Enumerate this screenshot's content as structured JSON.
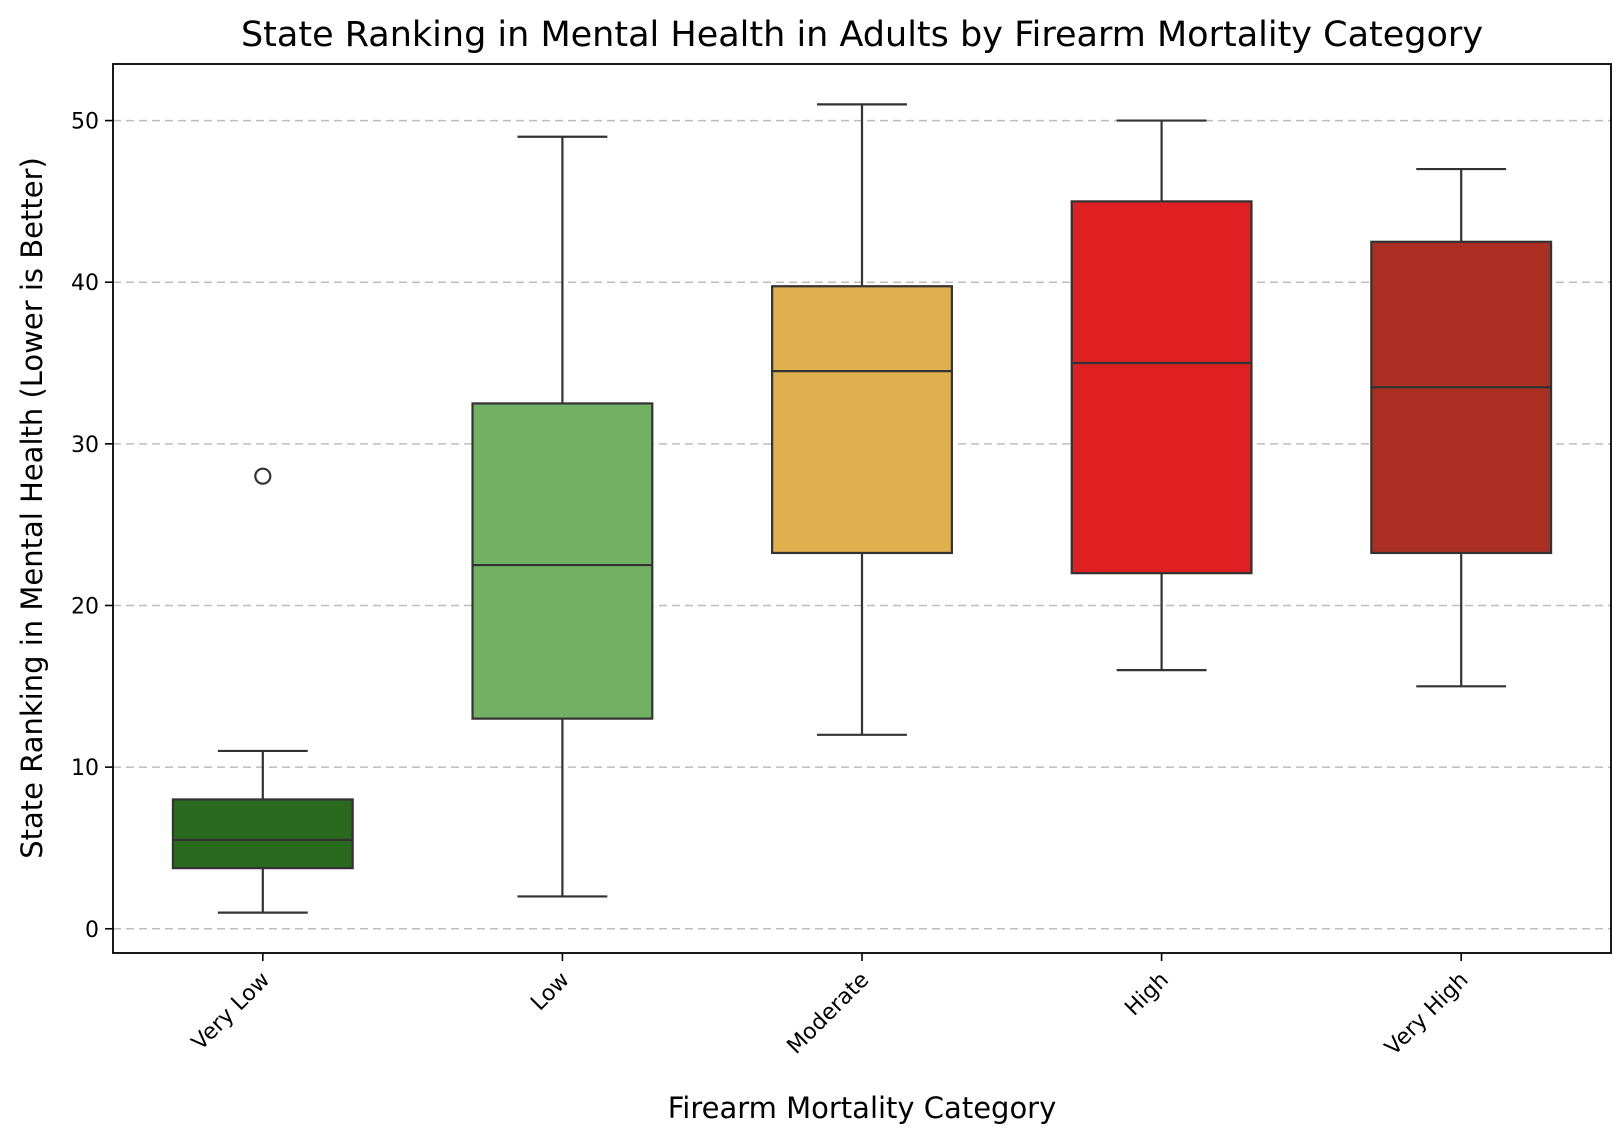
{
  "chart_data": {
    "type": "box",
    "title": "State Ranking in Mental Health in Adults by Firearm Mortality Category",
    "xlabel": "Firearm Mortality Category",
    "ylabel": "State Ranking in Mental Health (Lower is Better)",
    "ylim": [
      -1.5,
      53.5
    ],
    "yticks": [
      0,
      10,
      20,
      30,
      40,
      50
    ],
    "grid": "y-dashed",
    "categories": [
      "Very Low",
      "Low",
      "Moderate",
      "High",
      "Very High"
    ],
    "boxes": [
      {
        "category": "Very Low",
        "whisker_low": 1,
        "q1": 3.75,
        "median": 5.5,
        "q3": 8,
        "whisker_high": 11,
        "outliers": [
          28
        ],
        "color": "#2a6a1f"
      },
      {
        "category": "Low",
        "whisker_low": 2,
        "q1": 13,
        "median": 22.5,
        "q3": 32.5,
        "whisker_high": 49,
        "outliers": [],
        "color": "#72b064"
      },
      {
        "category": "Moderate",
        "whisker_low": 12,
        "q1": 23.25,
        "median": 34.5,
        "q3": 39.75,
        "whisker_high": 51,
        "outliers": [],
        "color": "#e0af4e"
      },
      {
        "category": "High",
        "whisker_low": 16,
        "q1": 22,
        "median": 35,
        "q3": 45,
        "whisker_high": 50,
        "outliers": [],
        "color": "#de2022"
      },
      {
        "category": "Very High",
        "whisker_low": 15,
        "q1": 23.25,
        "median": 33.5,
        "q3": 42.5,
        "whisker_high": 47,
        "outliers": [],
        "color": "#ab2e22"
      }
    ]
  }
}
